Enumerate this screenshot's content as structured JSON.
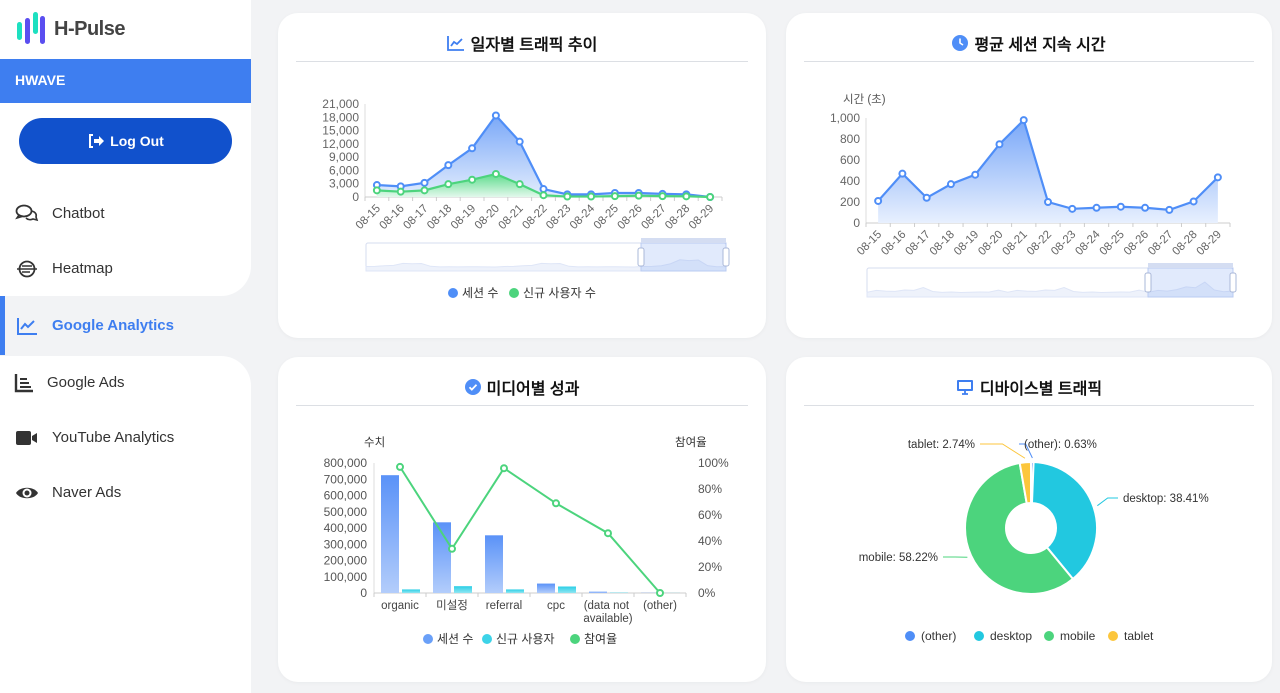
{
  "sidebar": {
    "logo_text": "H-Pulse",
    "org": "HWAVE",
    "logout_label": "Log Out",
    "items": [
      {
        "label": "Chatbot",
        "icon": "chat-icon"
      },
      {
        "label": "Heatmap",
        "icon": "heatmap-icon"
      },
      {
        "label": "Google Analytics",
        "icon": "line-chart-icon",
        "active": true
      },
      {
        "label": "Google Ads",
        "icon": "bar-list-icon"
      },
      {
        "label": "YouTube Analytics",
        "icon": "video-icon"
      },
      {
        "label": "Naver Ads",
        "icon": "eye-icon"
      }
    ]
  },
  "cards": {
    "traffic_title": "일자별 트래픽 추이",
    "duration_title": "평균 세션 지속 시간",
    "media_title": "미디어별 성과",
    "device_title": "디바이스별 트래픽"
  },
  "colors": {
    "blue": "#4f8ef7",
    "green": "#4cd47d",
    "cyan": "#22c8e0",
    "yellow": "#fcc63c",
    "accent": "#3e7ef0"
  },
  "chart_data": [
    {
      "type": "line",
      "title": "일자별 트래픽 추이",
      "x": [
        "08-15",
        "08-16",
        "08-17",
        "08-18",
        "08-19",
        "08-20",
        "08-21",
        "08-22",
        "08-23",
        "08-24",
        "08-25",
        "08-26",
        "08-27",
        "08-28",
        "08-29"
      ],
      "yticks": [
        "0",
        "3,000",
        "6,000",
        "9,000",
        "12,000",
        "15,000",
        "18,000",
        "21,000"
      ],
      "ylim": [
        0,
        21000
      ],
      "series": [
        {
          "name": "세션 수",
          "values": [
            2700,
            2400,
            3200,
            7200,
            11000,
            18400,
            12500,
            1800,
            600,
            600,
            900,
            900,
            700,
            600,
            0
          ]
        },
        {
          "name": "신규 사용자 수",
          "values": [
            1500,
            1200,
            1500,
            2900,
            3900,
            5200,
            2900,
            400,
            100,
            100,
            200,
            300,
            200,
            150,
            0
          ]
        }
      ],
      "legend": "bottom"
    },
    {
      "type": "line",
      "title": "평균 세션 지속 시간",
      "ylabel": "시간 (초)",
      "x": [
        "08-15",
        "08-16",
        "08-17",
        "08-18",
        "08-19",
        "08-20",
        "08-21",
        "08-22",
        "08-23",
        "08-24",
        "08-25",
        "08-26",
        "08-27",
        "08-28",
        "08-29"
      ],
      "yticks": [
        "0",
        "200",
        "400",
        "600",
        "800",
        "1,000"
      ],
      "ylim": [
        0,
        1000
      ],
      "series": [
        {
          "name": "평균 세션 지속 시간",
          "values": [
            210,
            470,
            240,
            370,
            460,
            750,
            980,
            200,
            135,
            145,
            155,
            145,
            125,
            205,
            435
          ]
        }
      ]
    },
    {
      "type": "bar",
      "title": "미디어별 성과",
      "ylabel": "수치",
      "y2label": "참여율",
      "categories": [
        "organic",
        "미설정",
        "referral",
        "cpc",
        "(data not available)",
        "(other)"
      ],
      "yticks": [
        "0",
        "100,000",
        "200,000",
        "300,000",
        "400,000",
        "500,000",
        "600,000",
        "700,000",
        "800,000"
      ],
      "ylim": [
        0,
        800000
      ],
      "y2ticks": [
        "0%",
        "20%",
        "40%",
        "60%",
        "80%",
        "100%"
      ],
      "y2lim": [
        0,
        100
      ],
      "series": [
        {
          "name": "세션 수",
          "values": [
            725000,
            435000,
            355000,
            58000,
            8000,
            1000
          ]
        },
        {
          "name": "신규 사용자",
          "values": [
            22000,
            42000,
            22000,
            40000,
            2000,
            500
          ]
        },
        {
          "name": "참여율",
          "values": [
            97,
            34,
            96,
            69,
            46,
            0
          ]
        }
      ],
      "legend": "bottom"
    },
    {
      "type": "pie",
      "title": "디바이스별 트래픽",
      "slices": [
        {
          "name": "(other)",
          "value": 0.63,
          "label": "(other): 0.63%"
        },
        {
          "name": "desktop",
          "value": 38.41,
          "label": "desktop: 38.41%"
        },
        {
          "name": "mobile",
          "value": 58.22,
          "label": "mobile: 58.22%"
        },
        {
          "name": "tablet",
          "value": 2.74,
          "label": "tablet: 2.74%"
        }
      ],
      "legend": "bottom"
    }
  ]
}
